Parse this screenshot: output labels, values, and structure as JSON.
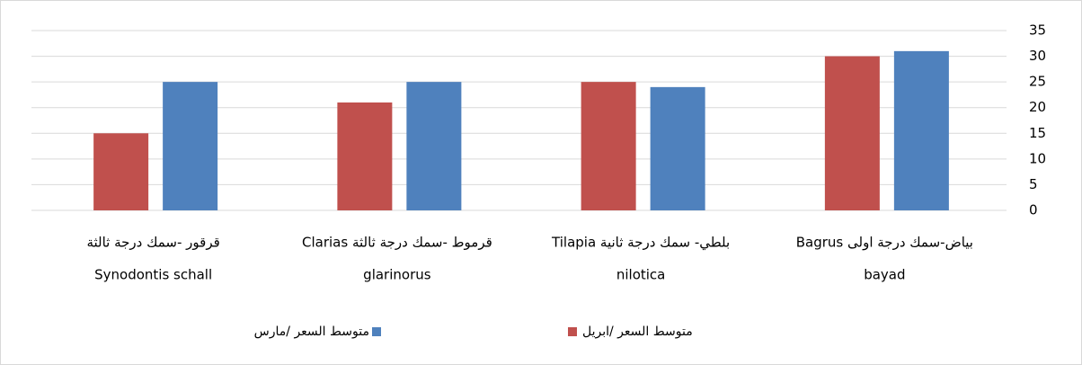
{
  "chart_data": {
    "type": "bar",
    "categories": [
      [
        "قرقور -سمك درجة ثالثة",
        "Synodontis schall"
      ],
      [
        "قرموط -سمك درجة ثالثة Clarias",
        "glarinorus"
      ],
      [
        "بلطي- سمك درجة ثانية Tilapia",
        "nilotica"
      ],
      [
        "بياض-سمك درجة اولى Bagrus",
        "bayad"
      ]
    ],
    "series": [
      {
        "name": "متوسط السعر /ابريل",
        "color": "#c0504d",
        "values": [
          15,
          21,
          25,
          30
        ]
      },
      {
        "name": "متوسط السعر /مارس",
        "color": "#4f81bd",
        "values": [
          25,
          25,
          24,
          31
        ]
      }
    ],
    "ylim": [
      0,
      35
    ],
    "yticks": [
      0,
      5,
      10,
      15,
      20,
      25,
      30,
      35
    ],
    "grid": true,
    "legend": "bottom"
  }
}
